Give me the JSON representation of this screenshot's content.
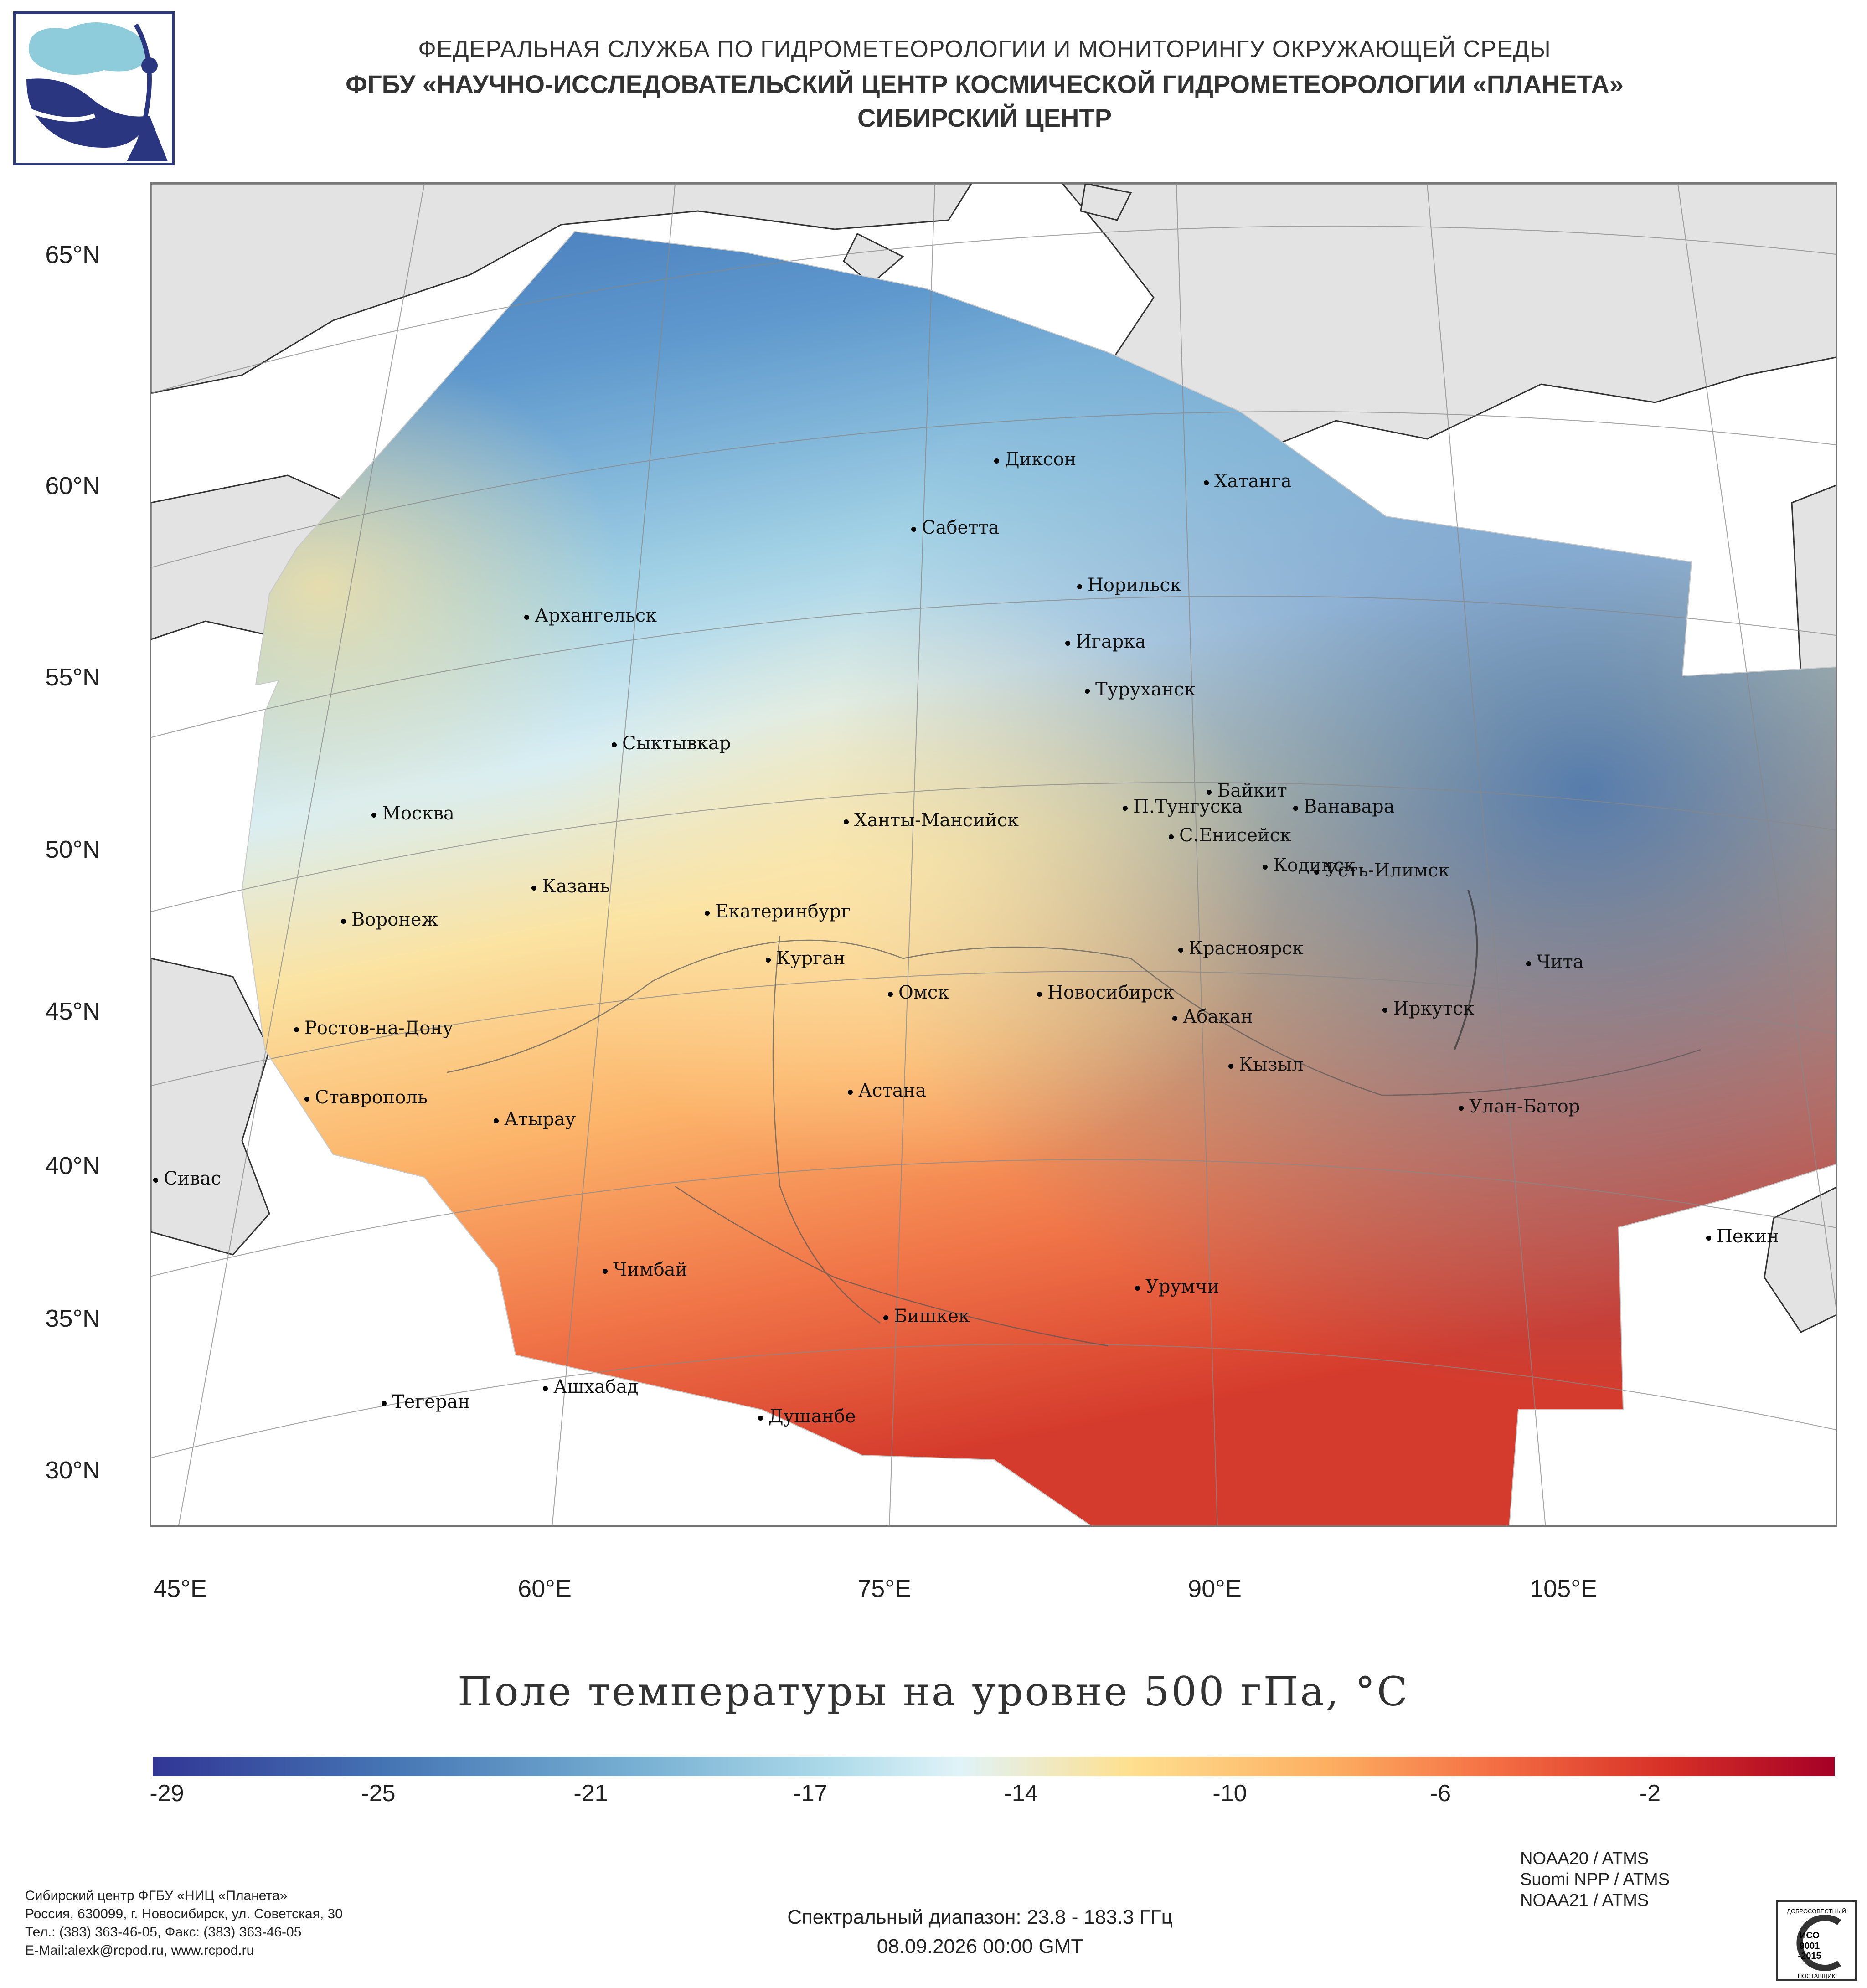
{
  "header": {
    "line1": "ФЕДЕРАЛЬНАЯ СЛУЖБА ПО ГИДРОМЕТЕОРОЛОГИИ И МОНИТОРИНГУ ОКРУЖАЮЩЕЙ СРЕДЫ",
    "line2": "ФГБУ «НАУЧНО-ИССЛЕДОВАТЕЛЬСКИЙ ЦЕНТР КОСМИЧЕСКОЙ ГИДРОМЕТЕОРОЛОГИИ «ПЛАНЕТА»",
    "line3": "СИБИРСКИЙ ЦЕНТР"
  },
  "logo": {
    "icon": "planeta-logo-icon"
  },
  "map": {
    "lat_labels": [
      "65°N",
      "60°N",
      "55°N",
      "50°N",
      "45°N",
      "40°N",
      "35°N",
      "30°N"
    ],
    "lon_labels": [
      "45°E",
      "60°E",
      "75°E",
      "90°E",
      "105°E"
    ],
    "cities": [
      {
        "name": "Диксон"
      },
      {
        "name": "Хатанга"
      },
      {
        "name": "Сабетта"
      },
      {
        "name": "Норильск"
      },
      {
        "name": "Архангельск"
      },
      {
        "name": "Игарка"
      },
      {
        "name": "Туруханск"
      },
      {
        "name": "Сыктывкар"
      },
      {
        "name": "Байкит"
      },
      {
        "name": "Москва"
      },
      {
        "name": "П.Тунгуска"
      },
      {
        "name": "Ванавара"
      },
      {
        "name": "Ханты-Мансийск"
      },
      {
        "name": "С.Енисейск"
      },
      {
        "name": "Казань"
      },
      {
        "name": "Кодинск"
      },
      {
        "name": "Усть-Илимск"
      },
      {
        "name": "Воронеж"
      },
      {
        "name": "Екатеринбург"
      },
      {
        "name": "Красноярск"
      },
      {
        "name": "Курган"
      },
      {
        "name": "Чита"
      },
      {
        "name": "Омск"
      },
      {
        "name": "Новосибирск"
      },
      {
        "name": "Иркутск"
      },
      {
        "name": "Ростов-на-Дону"
      },
      {
        "name": "Абакан"
      },
      {
        "name": "Кызыл"
      },
      {
        "name": "Ставрополь"
      },
      {
        "name": "Астана"
      },
      {
        "name": "Улан-Батор"
      },
      {
        "name": "Атырау"
      },
      {
        "name": "Сивас"
      },
      {
        "name": "Пекин"
      },
      {
        "name": "Чимбай"
      },
      {
        "name": "Урумчи"
      },
      {
        "name": "Бишкек"
      },
      {
        "name": "Ашхабад"
      },
      {
        "name": "Тегеран"
      },
      {
        "name": "Душанбе"
      }
    ]
  },
  "title": "Поле температуры на уровне 500 гПа, °С",
  "colorbar": {
    "labels": [
      "-29",
      "-25",
      "-21",
      "-17",
      "-14",
      "-10",
      "-6",
      "-2"
    ],
    "colors": [
      "#313695",
      "#4575b4",
      "#74add1",
      "#abd9e9",
      "#e0f3f8",
      "#fee090",
      "#fdae61",
      "#f46d43",
      "#d73027",
      "#a50026"
    ]
  },
  "footer": {
    "left": [
      "Сибирский центр ФГБУ «НИЦ «Планета»",
      "Россия, 630099, г. Новосибирск, ул. Советская, 30",
      "Тел.: (383) 363-46-05, Факс: (383) 363-46-05",
      "E-Mail:alexk@rcpod.ru, www.rcpod.ru"
    ],
    "spectral": "Спектральный диапазон: 23.8 - 183.3 ГГц",
    "datetime": "08.09.2026 00:00 GMT",
    "instruments": [
      "NOAA20 / ATMS",
      "Suomi NPP / ATMS",
      "NOAA21 / ATMS"
    ],
    "iso_badge": {
      "top": "ДОБРОСОВЕСТНЫЙ",
      "line1": "ИСО",
      "line2": "9001",
      "line3": "-2015",
      "bottom": "ПОСТАВЩИК"
    }
  }
}
